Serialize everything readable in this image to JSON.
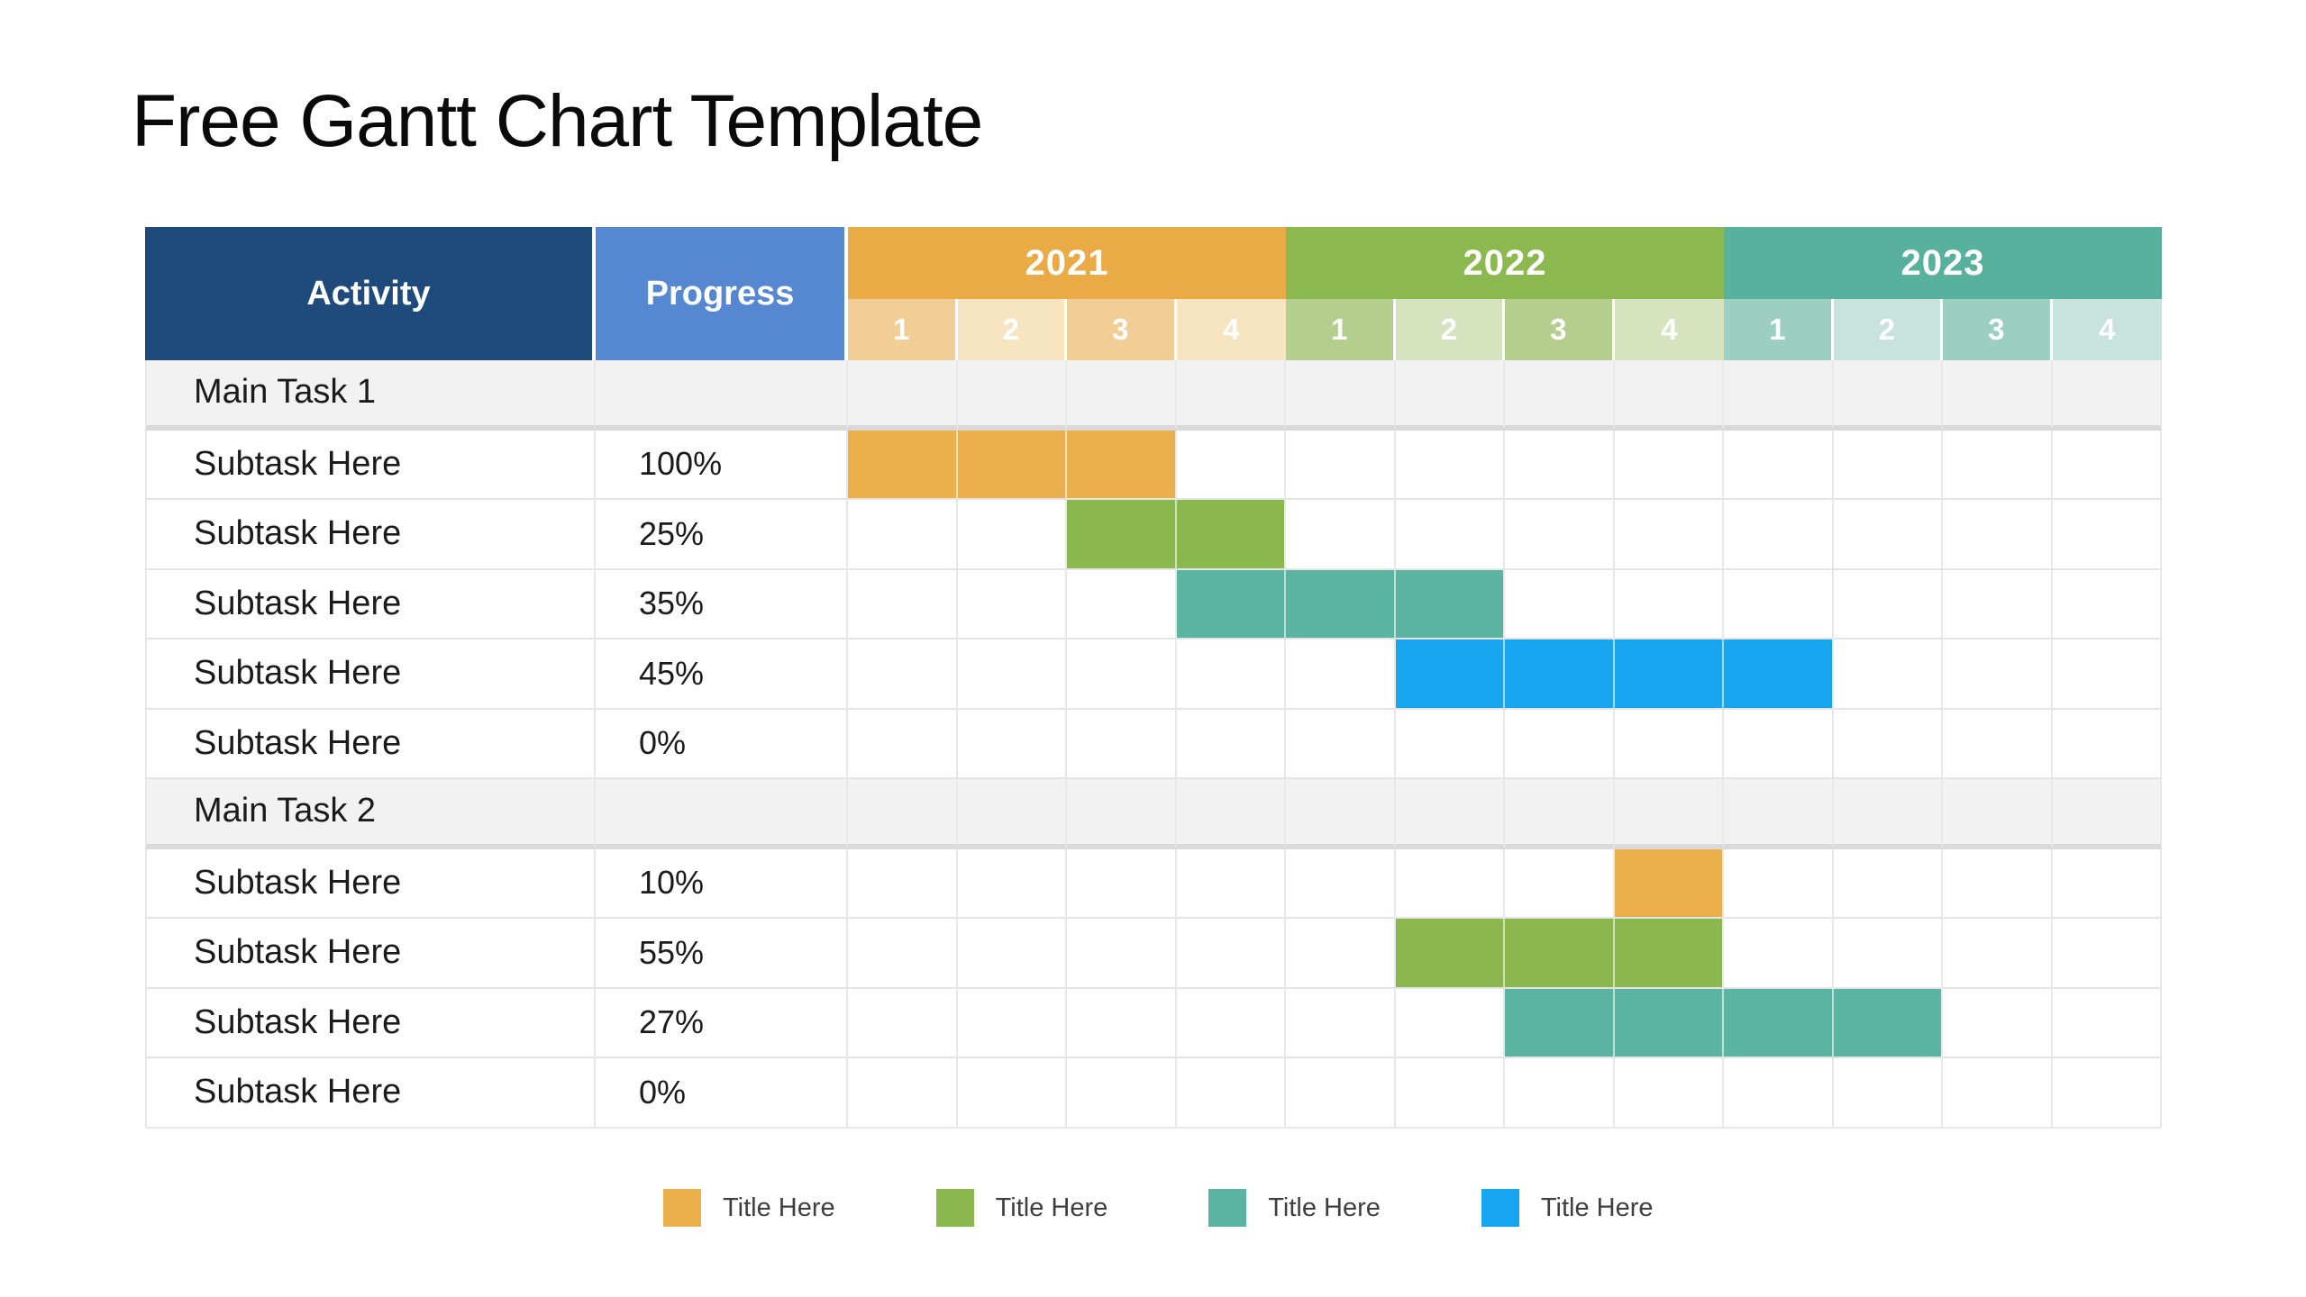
{
  "title": "Free Gantt Chart Template",
  "table": {
    "activity_header": "Activity",
    "progress_header": "Progress",
    "years": [
      {
        "label": "2021",
        "quarters": [
          "1",
          "2",
          "3",
          "4"
        ]
      },
      {
        "label": "2022",
        "quarters": [
          "1",
          "2",
          "3",
          "4"
        ]
      },
      {
        "label": "2023",
        "quarters": [
          "1",
          "2",
          "3",
          "4"
        ]
      }
    ],
    "rows": [
      {
        "type": "main",
        "activity": "Main Task 1",
        "progress": ""
      },
      {
        "type": "sub",
        "activity": "Subtask Here",
        "progress": "100%",
        "bar": {
          "color": "orange",
          "start": 0,
          "span": 3
        }
      },
      {
        "type": "sub",
        "activity": "Subtask Here",
        "progress": "25%",
        "bar": {
          "color": "green",
          "start": 2,
          "span": 2
        }
      },
      {
        "type": "sub",
        "activity": "Subtask Here",
        "progress": "35%",
        "bar": {
          "color": "teal",
          "start": 3,
          "span": 3
        }
      },
      {
        "type": "sub",
        "activity": "Subtask Here",
        "progress": "45%",
        "bar": {
          "color": "blue",
          "start": 5,
          "span": 4
        }
      },
      {
        "type": "sub",
        "activity": "Subtask Here",
        "progress": "0%"
      },
      {
        "type": "main",
        "activity": "Main Task 2",
        "progress": ""
      },
      {
        "type": "sub",
        "activity": "Subtask Here",
        "progress": "10%",
        "bar": {
          "color": "orange",
          "start": 7,
          "span": 1
        }
      },
      {
        "type": "sub",
        "activity": "Subtask Here",
        "progress": "55%",
        "bar": {
          "color": "green",
          "start": 5,
          "span": 3
        }
      },
      {
        "type": "sub",
        "activity": "Subtask Here",
        "progress": "27%",
        "bar": {
          "color": "teal",
          "start": 6,
          "span": 4
        }
      },
      {
        "type": "sub",
        "activity": "Subtask Here",
        "progress": "0%"
      }
    ]
  },
  "legend": [
    {
      "label": "Title Here",
      "color": "orange"
    },
    {
      "label": "Title Here",
      "color": "green"
    },
    {
      "label": "Title Here",
      "color": "teal"
    },
    {
      "label": "Title Here",
      "color": "blue"
    }
  ],
  "colors": {
    "activity_header_bg": "#1F4B7C",
    "progress_header_bg": "#5588D0",
    "year_bg": [
      "#EAAB47",
      "#8BB94F",
      "#58B19D"
    ],
    "quarter_tints": [
      {
        "dark": "#F1CE96",
        "light": "#F7E4C1"
      },
      {
        "dark": "#B4CE8D",
        "light": "#D5E4BF"
      },
      {
        "dark": "#9DCEC2",
        "light": "#C8E2DC"
      }
    ],
    "bars": {
      "orange": "#EBAF4B",
      "green": "#8AB84E",
      "teal": "#5BB3A1",
      "blue": "#17A5F0"
    },
    "main_row_bg": "#F2F2F2",
    "grid_line": "#E8E8E8",
    "thick_divider": "#D9D9D9",
    "header_text": "#FFFFFF",
    "body_text": "#1B1B1B",
    "legend_text": "#3F3F3F"
  },
  "chart_data": {
    "type": "table",
    "subtype": "gantt",
    "title": "Free Gantt Chart Template",
    "columns": [
      "Activity",
      "Progress",
      "2021 Q1",
      "2021 Q2",
      "2021 Q3",
      "2021 Q4",
      "2022 Q1",
      "2022 Q2",
      "2022 Q3",
      "2022 Q4",
      "2023 Q1",
      "2023 Q2",
      "2023 Q3",
      "2023 Q4"
    ],
    "timeline": {
      "years": [
        2021,
        2022,
        2023
      ],
      "quarters_per_year": 4
    },
    "groups": [
      {
        "name": "Main Task 1",
        "tasks": [
          {
            "name": "Subtask Here",
            "progress_pct": 100,
            "start": "2021 Q1",
            "end": "2021 Q3",
            "color": "#EBAF4B"
          },
          {
            "name": "Subtask Here",
            "progress_pct": 25,
            "start": "2021 Q3",
            "end": "2021 Q4",
            "color": "#8AB84E"
          },
          {
            "name": "Subtask Here",
            "progress_pct": 35,
            "start": "2021 Q4",
            "end": "2022 Q2",
            "color": "#5BB3A1"
          },
          {
            "name": "Subtask Here",
            "progress_pct": 45,
            "start": "2022 Q2",
            "end": "2023 Q1",
            "color": "#17A5F0"
          },
          {
            "name": "Subtask Here",
            "progress_pct": 0,
            "start": null,
            "end": null,
            "color": null
          }
        ]
      },
      {
        "name": "Main Task 2",
        "tasks": [
          {
            "name": "Subtask Here",
            "progress_pct": 10,
            "start": "2022 Q4",
            "end": "2022 Q4",
            "color": "#EBAF4B"
          },
          {
            "name": "Subtask Here",
            "progress_pct": 55,
            "start": "2022 Q2",
            "end": "2022 Q4",
            "color": "#8AB84E"
          },
          {
            "name": "Subtask Here",
            "progress_pct": 27,
            "start": "2022 Q3",
            "end": "2023 Q2",
            "color": "#5BB3A1"
          },
          {
            "name": "Subtask Here",
            "progress_pct": 0,
            "start": null,
            "end": null,
            "color": null
          }
        ]
      }
    ],
    "legend": [
      {
        "label": "Title Here",
        "color": "#EBAF4B"
      },
      {
        "label": "Title Here",
        "color": "#8AB84E"
      },
      {
        "label": "Title Here",
        "color": "#5BB3A1"
      },
      {
        "label": "Title Here",
        "color": "#17A5F0"
      }
    ],
    "grid": true,
    "legend_position": "bottom"
  }
}
